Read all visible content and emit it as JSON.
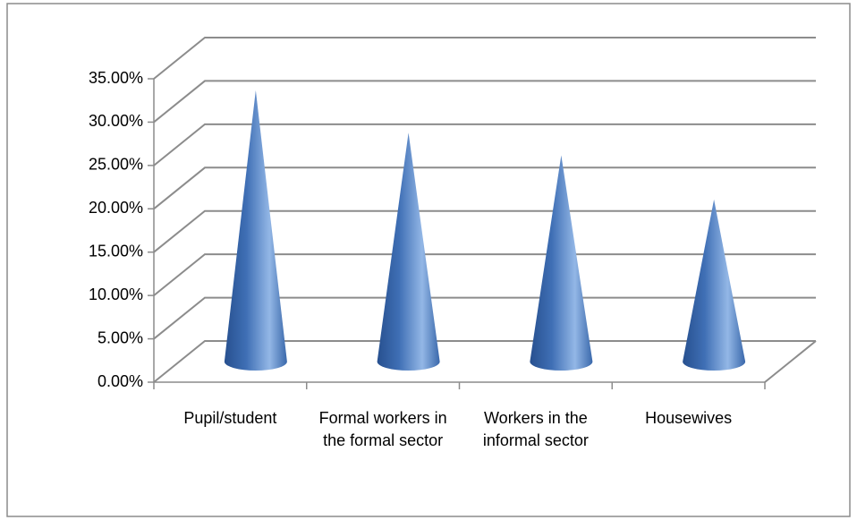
{
  "chart_data": {
    "type": "cone3d",
    "categories": [
      "Pupil/student",
      "Formal workers in the formal sector",
      "Workers in the informal sector",
      "Housewives"
    ],
    "values": [
      31.3,
      26.4,
      23.8,
      18.7
    ],
    "color": "#4a7cc4",
    "ylim": [
      0,
      35
    ],
    "yticks": [
      {
        "value": 0,
        "label": "0.00%"
      },
      {
        "value": 5,
        "label": "5.00%"
      },
      {
        "value": 10,
        "label": "10.00%"
      },
      {
        "value": 15,
        "label": "15.00%"
      },
      {
        "value": 20,
        "label": "20.00%"
      },
      {
        "value": 25,
        "label": "25.00%"
      },
      {
        "value": 30,
        "label": "30.00%"
      },
      {
        "value": 35,
        "label": "35.00%"
      }
    ],
    "grid": true
  }
}
